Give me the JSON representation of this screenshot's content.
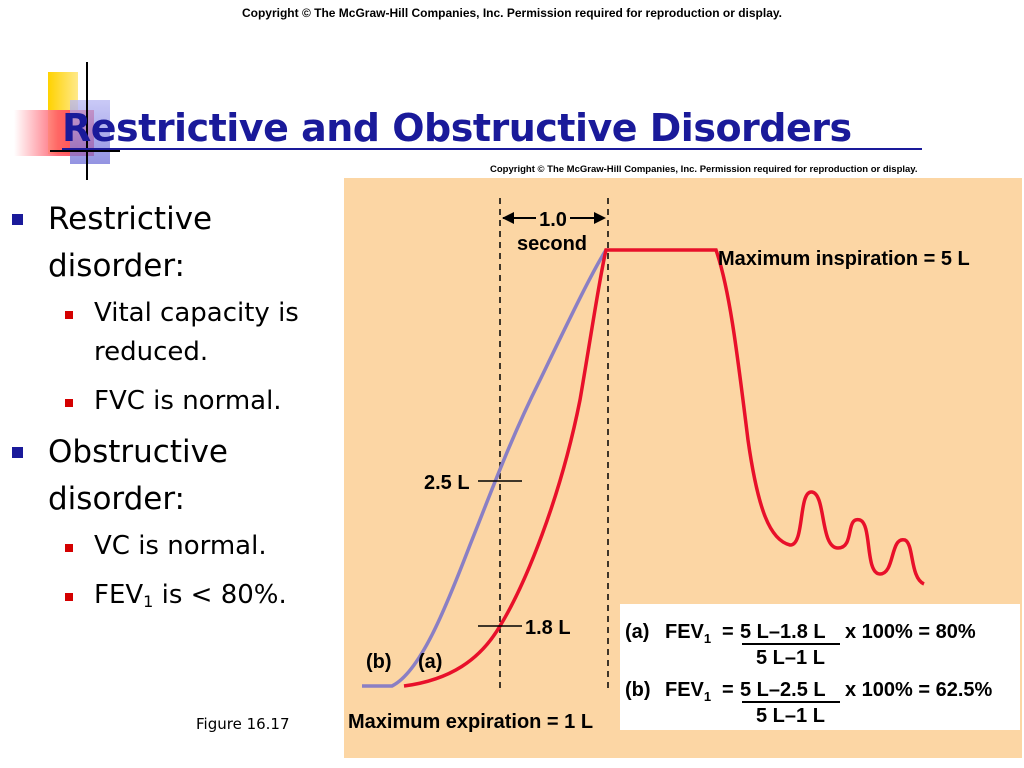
{
  "copyright_top": "Copyright © The McGraw-Hill Companies, Inc. Permission required for reproduction or display.",
  "title": "Restrictive and Obstructive Disorders",
  "bullets": [
    {
      "text": "Restrictive disorder:",
      "subitems": [
        "Vital capacity is reduced.",
        "FVC is normal."
      ]
    },
    {
      "text": "Obstructive disorder:",
      "subitems": [
        "VC is normal."
      ]
    }
  ],
  "fev_bullet": {
    "prefix": "FEV",
    "sub": "1",
    "suffix": " is < 80%."
  },
  "figure_caption": "Figure 16.17",
  "figure_copyright": "Copyright © The McGraw-Hill Companies, Inc. Permission required for reproduction or display.",
  "colors": {
    "title": "#1a1a9a",
    "curve_a": "#e8102a",
    "curve_b": "#8a7fc4",
    "panel": "#fcd6a4"
  },
  "chart_labels": {
    "interval_value": "1.0",
    "interval_unit": "second",
    "max_inspiration": "Maximum inspiration = 5 L",
    "max_expiration": "Maximum expiration = 1 L",
    "mark_25": "2.5 L",
    "mark_18": "1.8 L",
    "curve_b": "(b)",
    "curve_a": "(a)"
  },
  "equations": {
    "a": {
      "label": "(a)",
      "fev": "FEV",
      "sub": "1",
      "eq": "=",
      "numerator": "5 L–1.8 L",
      "result": "x 100% = 80%",
      "denominator": "5 L–1 L"
    },
    "b": {
      "label": "(b)",
      "fev": "FEV",
      "sub": "1",
      "eq": "=",
      "numerator": "5 L–2.5 L",
      "result": "x 100% = 62.5%",
      "denominator": "5 L–1 L"
    }
  }
}
